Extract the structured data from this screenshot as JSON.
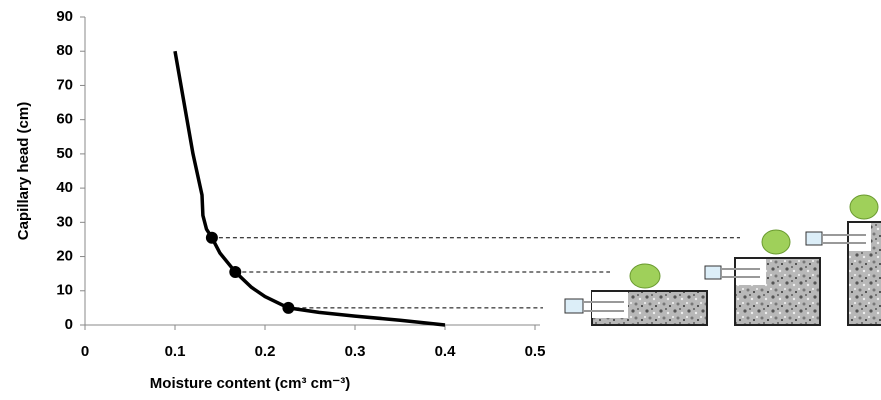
{
  "chart_data": {
    "type": "line",
    "xlabel": "Moisture content (cm³ cm⁻³)",
    "ylabel": "Capillary head (cm)",
    "xlim": [
      0,
      0.5
    ],
    "xticks": [
      0,
      0.1,
      0.2,
      0.3,
      0.4,
      0.5
    ],
    "ylim": [
      0,
      90
    ],
    "yticks": [
      0,
      10,
      20,
      30,
      40,
      50,
      60,
      70,
      80,
      90
    ],
    "series": [
      {
        "color": "#000000",
        "x": [
          0.1,
          0.11,
          0.12,
          0.13,
          0.131,
          0.135,
          0.141,
          0.15,
          0.167,
          0.185,
          0.2,
          0.226,
          0.26,
          0.3,
          0.35,
          0.4
        ],
        "values": [
          80,
          65,
          50,
          38,
          32,
          28,
          25.5,
          21,
          15.5,
          11,
          8.3,
          5,
          3.7,
          2.6,
          1.4,
          0
        ]
      }
    ],
    "points": {
      "color": "#000000",
      "x": [
        0.141,
        0.167,
        0.226
      ],
      "values": [
        25.5,
        15.5,
        5
      ]
    }
  }
}
